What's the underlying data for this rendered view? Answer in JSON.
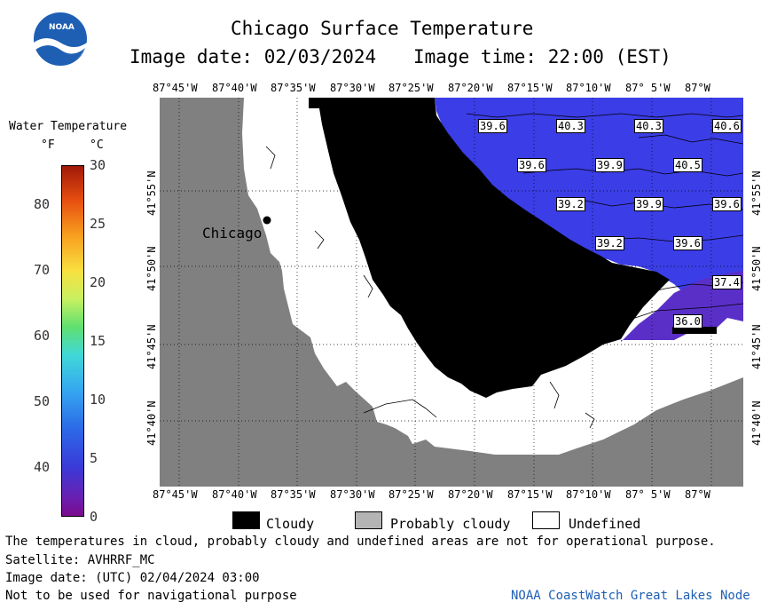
{
  "header": {
    "title": "Chicago Surface Temperature",
    "image_date": "Image date: 02/03/2024",
    "image_time": "Image time: 22:00 (EST)"
  },
  "logo": {
    "text": "NOAA"
  },
  "colorbar": {
    "title": "Water Temperature",
    "unit_f": "°F",
    "unit_c": "°C",
    "f_ticks": [
      "80",
      "70",
      "60",
      "50",
      "40"
    ],
    "c_ticks": [
      "30",
      "25",
      "20",
      "15",
      "10",
      "5",
      "0"
    ]
  },
  "map": {
    "lon_labels": [
      "87°45'W",
      "87°40'W",
      "87°35'W",
      "87°30'W",
      "87°25'W",
      "87°20'W",
      "87°15'W",
      "87°10'W",
      "87° 5'W",
      "87°W"
    ],
    "lat_labels": [
      "41°55'N",
      "41°50'N",
      "41°45'N",
      "41°40'N"
    ],
    "city_label": "Chicago",
    "temperature_labels": [
      "39.6",
      "40.3",
      "40.3",
      "40.6",
      "39.6",
      "39.9",
      "40.5",
      "39.2",
      "39.9",
      "39.6",
      "39.2",
      "39.6",
      "37.4",
      "36.0"
    ],
    "colors": {
      "land": "#808080",
      "cloud": "#000000",
      "undefined": "#ffffff",
      "water_warm": "#3b3de6",
      "water_cool": "#5a2fc8"
    }
  },
  "legend": {
    "cloudy": "Cloudy",
    "probably_cloudy": "Probably cloudy",
    "undefined": "Undefined"
  },
  "footer": {
    "disclaimer": "The temperatures in cloud, probably cloudy and undefined areas are not for operational purpose.",
    "satellite": "Satellite: AVHRRF_MC",
    "utc_date": "Image date: (UTC) 02/04/2024  03:00",
    "nav_warning": "Not to be used for navigational purpose",
    "credit": "NOAA CoastWatch Great Lakes Node"
  }
}
